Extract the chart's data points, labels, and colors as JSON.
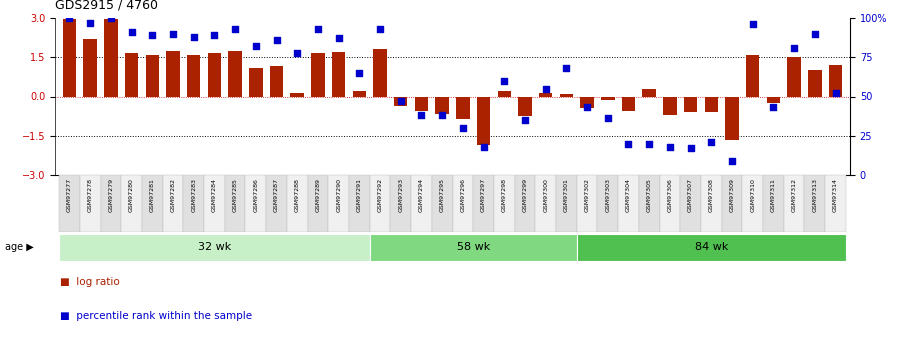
{
  "title": "GDS2915 / 4760",
  "samples": [
    "GSM97277",
    "GSM97278",
    "GSM97279",
    "GSM97280",
    "GSM97281",
    "GSM97282",
    "GSM97283",
    "GSM97284",
    "GSM97285",
    "GSM97286",
    "GSM97287",
    "GSM97288",
    "GSM97289",
    "GSM97290",
    "GSM97291",
    "GSM97292",
    "GSM97293",
    "GSM97294",
    "GSM97295",
    "GSM97296",
    "GSM97297",
    "GSM97298",
    "GSM97299",
    "GSM97300",
    "GSM97301",
    "GSM97302",
    "GSM97303",
    "GSM97304",
    "GSM97305",
    "GSM97306",
    "GSM97307",
    "GSM97308",
    "GSM97309",
    "GSM97310",
    "GSM97311",
    "GSM97312",
    "GSM97313",
    "GSM97314"
  ],
  "log_ratio": [
    2.95,
    2.2,
    2.95,
    1.65,
    1.6,
    1.75,
    1.6,
    1.65,
    1.75,
    1.1,
    1.15,
    0.15,
    1.65,
    1.7,
    0.2,
    1.8,
    -0.35,
    -0.55,
    -0.65,
    -0.85,
    -1.85,
    0.2,
    -0.75,
    0.15,
    0.1,
    -0.45,
    -0.15,
    -0.55,
    0.3,
    -0.7,
    -0.6,
    -0.6,
    -1.65,
    1.6,
    -0.25,
    1.5,
    1.0,
    1.2
  ],
  "percentile": [
    100,
    97,
    100,
    91,
    89,
    90,
    88,
    89,
    93,
    82,
    86,
    78,
    93,
    87,
    65,
    93,
    47,
    38,
    38,
    30,
    18,
    60,
    35,
    55,
    68,
    43,
    36,
    20,
    20,
    18,
    17,
    21,
    9,
    96,
    43,
    81,
    90,
    52
  ],
  "groups": [
    {
      "label": "32 wk",
      "start": 0,
      "end": 15,
      "color": "#c8f0c8"
    },
    {
      "label": "58 wk",
      "start": 15,
      "end": 25,
      "color": "#80d880"
    },
    {
      "label": "84 wk",
      "start": 25,
      "end": 38,
      "color": "#50c050"
    }
  ],
  "bar_color": "#aa2200",
  "dot_color": "#0000cc",
  "ylim": [
    -3,
    3
  ],
  "yticks_left": [
    -3,
    -1.5,
    0,
    1.5,
    3
  ],
  "yticks_right": [
    0,
    25,
    50,
    75,
    100
  ],
  "age_label": "age",
  "legend_items": [
    {
      "color": "#aa2200",
      "label": "log ratio"
    },
    {
      "color": "#0000cc",
      "label": "percentile rank within the sample"
    }
  ]
}
